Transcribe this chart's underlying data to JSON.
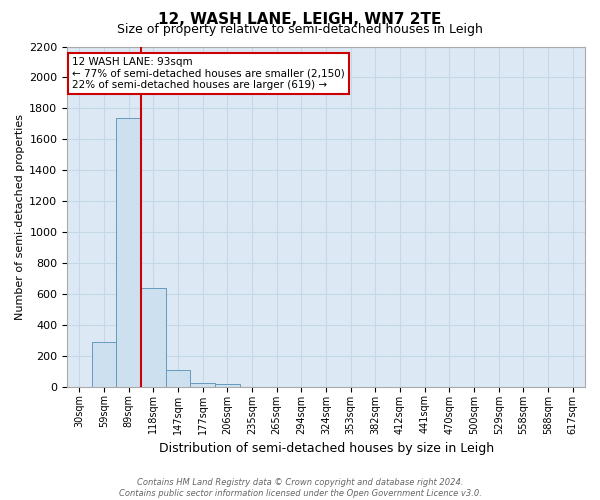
{
  "title": "12, WASH LANE, LEIGH, WN7 2TE",
  "subtitle": "Size of property relative to semi-detached houses in Leigh",
  "xlabel": "Distribution of semi-detached houses by size in Leigh",
  "ylabel": "Number of semi-detached properties",
  "footnote1": "Contains HM Land Registry data © Crown copyright and database right 2024.",
  "footnote2": "Contains public sector information licensed under the Open Government Licence v3.0.",
  "bin_labels": [
    "30sqm",
    "59sqm",
    "89sqm",
    "118sqm",
    "147sqm",
    "177sqm",
    "206sqm",
    "235sqm",
    "265sqm",
    "294sqm",
    "324sqm",
    "353sqm",
    "382sqm",
    "412sqm",
    "441sqm",
    "470sqm",
    "500sqm",
    "529sqm",
    "558sqm",
    "588sqm",
    "617sqm"
  ],
  "bar_values": [
    0,
    290,
    1740,
    635,
    110,
    25,
    15,
    0,
    0,
    0,
    0,
    0,
    0,
    0,
    0,
    0,
    0,
    0,
    0,
    0,
    0
  ],
  "bar_color": "#cde0ef",
  "bar_edge_color": "#6699bb",
  "property_sqm": 93,
  "property_bin_index": 2,
  "property_label": "12 WASH LANE: 93sqm",
  "annotation_line1": "← 77% of semi-detached houses are smaller (2,150)",
  "annotation_line2": "22% of semi-detached houses are larger (619) →",
  "annotation_box_facecolor": "#ffffff",
  "annotation_box_edgecolor": "#cc0000",
  "ylim": [
    0,
    2200
  ],
  "yticks": [
    0,
    200,
    400,
    600,
    800,
    1000,
    1200,
    1400,
    1600,
    1800,
    2000,
    2200
  ],
  "grid_color": "#c5d8e8",
  "bg_color": "#dce9f5",
  "property_line_color": "#cc0000",
  "title_fontsize": 11,
  "subtitle_fontsize": 9,
  "ylabel_fontsize": 8,
  "xlabel_fontsize": 9,
  "tick_fontsize": 8,
  "xtick_fontsize": 7,
  "annotation_fontsize": 7.5
}
